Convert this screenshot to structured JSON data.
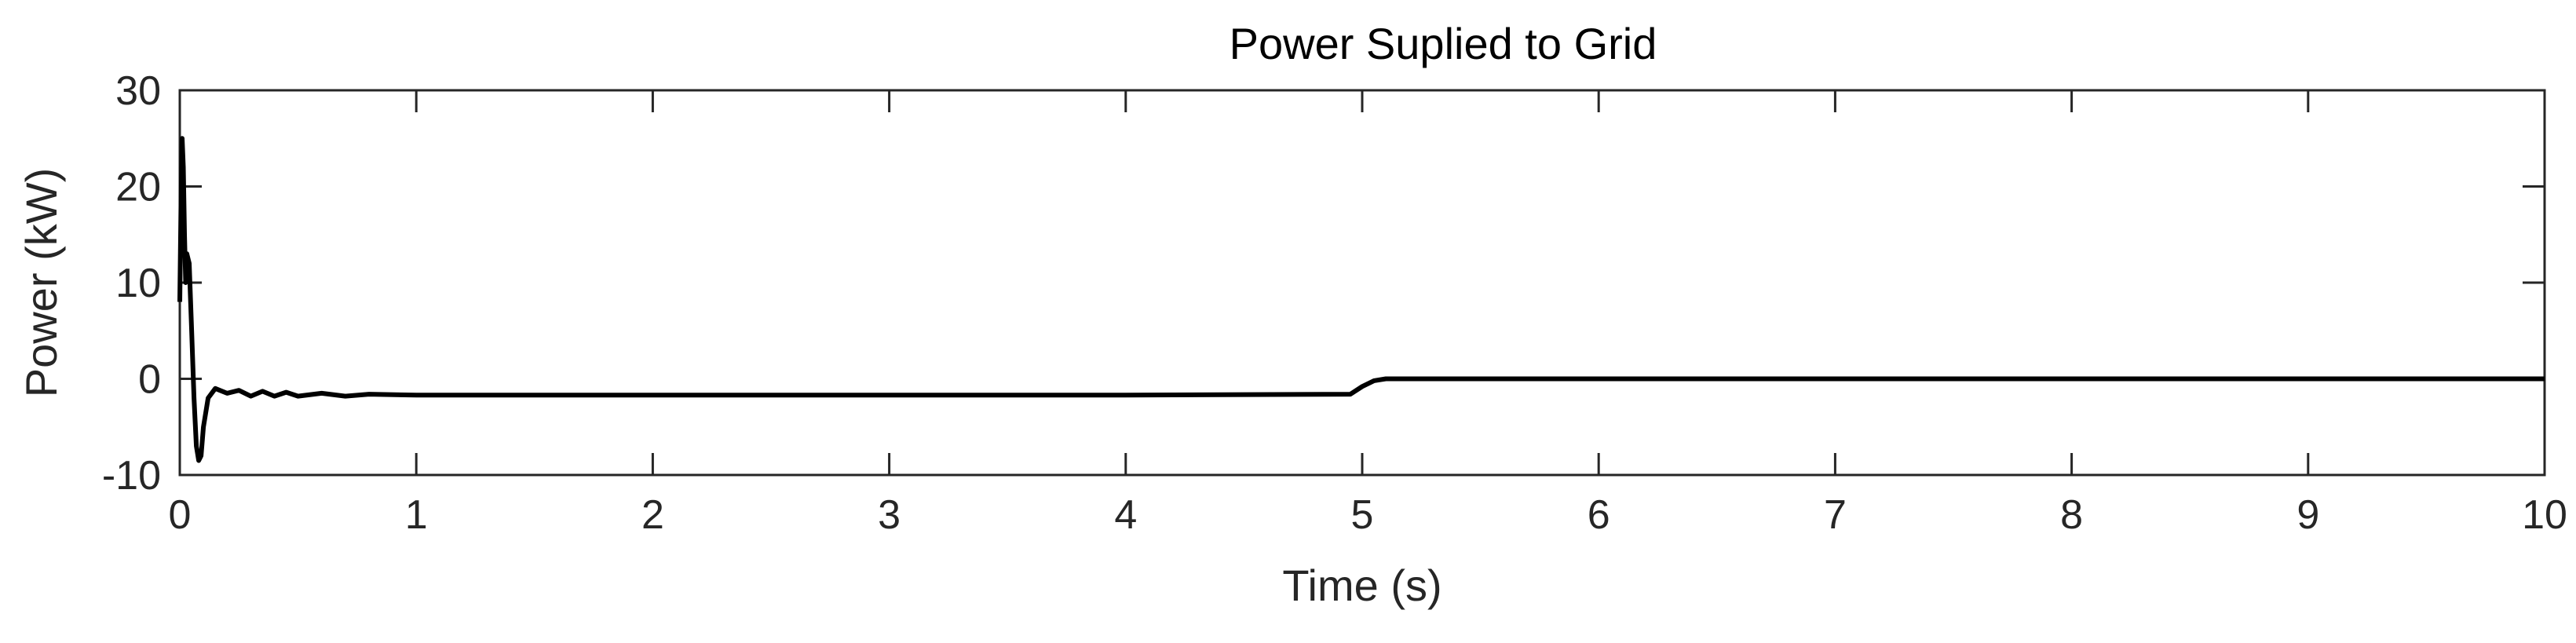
{
  "chart_data": {
    "type": "line",
    "title": "Power Suplied to Grid",
    "xlabel": "Time (s)",
    "ylabel": "Power (kW)",
    "xlim": [
      0,
      10
    ],
    "ylim": [
      -10,
      30
    ],
    "xticks": [
      0,
      1,
      2,
      3,
      4,
      5,
      6,
      7,
      8,
      9,
      10
    ],
    "yticks": [
      -10,
      0,
      10,
      20,
      30
    ],
    "xtick_labels": [
      "0",
      "1",
      "2",
      "3",
      "4",
      "5",
      "6",
      "7",
      "8",
      "9",
      "10"
    ],
    "ytick_labels": [
      "-10",
      "0",
      "10",
      "20",
      "30"
    ],
    "grid": false,
    "line_color": "#000000",
    "series": [
      {
        "x": [
          0,
          0.005,
          0.01,
          0.015,
          0.02,
          0.025,
          0.03,
          0.04,
          0.05,
          0.06,
          0.07,
          0.08,
          0.09,
          0.1,
          0.12,
          0.15,
          0.2,
          0.25,
          0.3,
          0.35,
          0.4,
          0.45,
          0.5,
          0.6,
          0.7,
          0.8,
          1.0,
          1.5,
          2.0,
          3.0,
          4.0,
          4.95,
          5.0,
          5.05,
          5.1,
          5.2,
          6.0,
          7.0,
          8.0,
          9.0,
          10.0
        ],
        "y": [
          8,
          18,
          25,
          22,
          15,
          10,
          13,
          12,
          5,
          -2,
          -7,
          -8.5,
          -8,
          -5,
          -2,
          -1,
          -1.5,
          -1.2,
          -1.8,
          -1.3,
          -1.8,
          -1.4,
          -1.8,
          -1.5,
          -1.8,
          -1.6,
          -1.7,
          -1.7,
          -1.7,
          -1.7,
          -1.7,
          -1.6,
          -0.8,
          -0.2,
          0,
          0,
          0,
          0,
          0,
          0,
          0
        ]
      }
    ]
  }
}
